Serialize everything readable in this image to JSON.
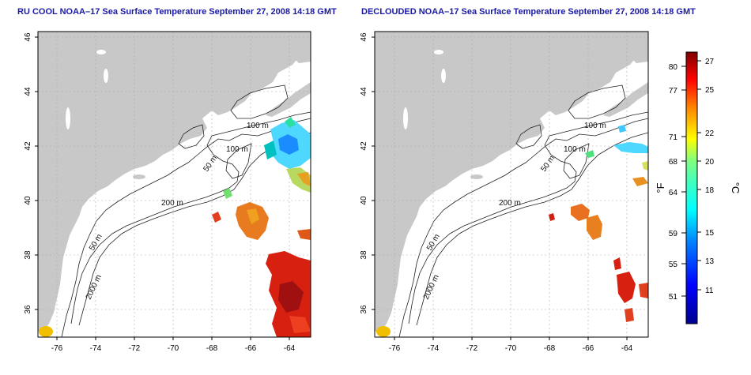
{
  "panels": [
    {
      "title": "RU COOL NOAA–17 Sea Surface Temperature September 27, 2008 14:18 GMT",
      "x_ticks": [
        "-76",
        "-74",
        "-72",
        "-70",
        "-68",
        "-66",
        "-64"
      ],
      "y_ticks": [
        "46",
        "44",
        "42",
        "40",
        "38",
        "36"
      ],
      "contour_labels": [
        "100 m",
        "100 m",
        "50 m",
        "200 m",
        "50 m",
        "2000 m"
      ]
    },
    {
      "title": "DECLOUDED NOAA–17 Sea Surface Temperature September 27, 2008 14:18 GMT",
      "x_ticks": [
        "-76",
        "-74",
        "-72",
        "-70",
        "-68",
        "-66",
        "-64"
      ],
      "y_ticks": [
        "46",
        "44",
        "42",
        "40",
        "38",
        "36"
      ],
      "contour_labels": [
        "100 m",
        "100 m",
        "50 m",
        "200 m",
        "50 m",
        "2000 m"
      ]
    }
  ],
  "colorbar": {
    "fahrenheit_label": "°F",
    "celsius_label": "°C",
    "fahrenheit_ticks": [
      "80",
      "77",
      "71",
      "68",
      "64",
      "59",
      "55",
      "51"
    ],
    "celsius_ticks": [
      "27",
      "25",
      "22",
      "20",
      "18",
      "15",
      "13",
      "11"
    ],
    "range_c": [
      9,
      28
    ]
  },
  "colors": {
    "land": "#c8c8c8",
    "title": "#1a1aa6",
    "grid": "#aaaaaa"
  }
}
